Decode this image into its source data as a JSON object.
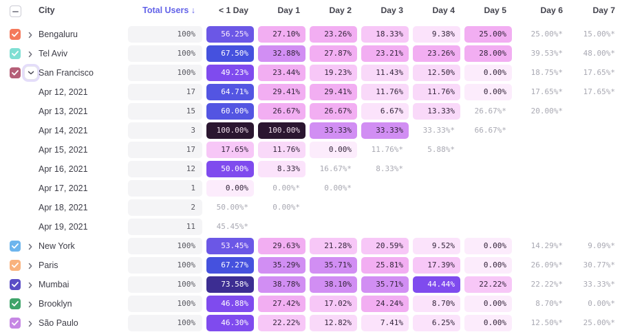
{
  "table": {
    "select_all_state": "indeterminate",
    "columns": [
      "City",
      "Total Users ↓",
      "< 1 Day",
      "Day 1",
      "Day 2",
      "Day 3",
      "Day 4",
      "Day 5",
      "Day 6",
      "Day 7"
    ],
    "rows": [
      {
        "kind": "city",
        "label": "Bengaluru",
        "checkbox_color": "#f4795b",
        "checked": true,
        "expanded": false,
        "total": "100%",
        "cells": [
          {
            "text": "56.25%",
            "value": 56.25
          },
          {
            "text": "27.10%",
            "value": 27.1
          },
          {
            "text": "23.26%",
            "value": 23.26
          },
          {
            "text": "18.33%",
            "value": 18.33
          },
          {
            "text": "9.38%",
            "value": 9.38
          },
          {
            "text": "25.00%",
            "value": 25.0
          },
          {
            "text": "25.00%*",
            "value": 25.0,
            "estimate": true
          },
          {
            "text": "15.00%*",
            "value": 15.0,
            "estimate": true
          }
        ]
      },
      {
        "kind": "city",
        "label": "Tel Aviv",
        "checkbox_color": "#7fdfd3",
        "checked": true,
        "expanded": false,
        "total": "100%",
        "cells": [
          {
            "text": "67.50%",
            "value": 67.5
          },
          {
            "text": "32.88%",
            "value": 32.88
          },
          {
            "text": "27.87%",
            "value": 27.87
          },
          {
            "text": "23.21%",
            "value": 23.21
          },
          {
            "text": "23.26%",
            "value": 23.26
          },
          {
            "text": "28.00%",
            "value": 28.0
          },
          {
            "text": "39.53%*",
            "value": 39.53,
            "estimate": true
          },
          {
            "text": "48.00%*",
            "value": 48.0,
            "estimate": true
          }
        ]
      },
      {
        "kind": "city",
        "label": "San Francisco",
        "checkbox_color": "#b55f78",
        "checked": true,
        "expanded": true,
        "focused": true,
        "total": "100%",
        "cells": [
          {
            "text": "49.23%",
            "value": 49.23
          },
          {
            "text": "23.44%",
            "value": 23.44
          },
          {
            "text": "19.23%",
            "value": 19.23
          },
          {
            "text": "11.43%",
            "value": 11.43
          },
          {
            "text": "12.50%",
            "value": 12.5
          },
          {
            "text": "0.00%",
            "value": 0
          },
          {
            "text": "18.75%*",
            "value": 18.75,
            "estimate": true
          },
          {
            "text": "17.65%*",
            "value": 17.65,
            "estimate": true
          }
        ]
      },
      {
        "kind": "date",
        "label": "Apr 12, 2021",
        "total": "17",
        "cells": [
          {
            "text": "64.71%",
            "value": 64.71
          },
          {
            "text": "29.41%",
            "value": 29.41
          },
          {
            "text": "29.41%",
            "value": 29.41
          },
          {
            "text": "11.76%",
            "value": 11.76
          },
          {
            "text": "11.76%",
            "value": 11.76
          },
          {
            "text": "0.00%",
            "value": 0
          },
          {
            "text": "17.65%*",
            "value": 17.65,
            "estimate": true
          },
          {
            "text": "17.65%*",
            "value": 17.65,
            "estimate": true
          }
        ]
      },
      {
        "kind": "date",
        "label": "Apr 13, 2021",
        "total": "15",
        "cells": [
          {
            "text": "60.00%",
            "value": 60.0
          },
          {
            "text": "26.67%",
            "value": 26.67
          },
          {
            "text": "26.67%",
            "value": 26.67
          },
          {
            "text": "6.67%",
            "value": 6.67
          },
          {
            "text": "13.33%",
            "value": 13.33
          },
          {
            "text": "26.67%*",
            "value": 26.67,
            "estimate": true
          },
          {
            "text": "20.00%*",
            "value": 20.0,
            "estimate": true
          },
          null
        ]
      },
      {
        "kind": "date",
        "label": "Apr 14, 2021",
        "total": "3",
        "cells": [
          {
            "text": "100.00%",
            "value": 100
          },
          {
            "text": "100.00%",
            "value": 100
          },
          {
            "text": "33.33%",
            "value": 33.33
          },
          {
            "text": "33.33%",
            "value": 33.33
          },
          {
            "text": "33.33%*",
            "value": 33.33,
            "estimate": true
          },
          {
            "text": "66.67%*",
            "value": 66.67,
            "estimate": true
          },
          null,
          null
        ]
      },
      {
        "kind": "date",
        "label": "Apr 15, 2021",
        "total": "17",
        "cells": [
          {
            "text": "17.65%",
            "value": 17.65
          },
          {
            "text": "11.76%",
            "value": 11.76
          },
          {
            "text": "0.00%",
            "value": 0
          },
          {
            "text": "11.76%*",
            "value": 11.76,
            "estimate": true
          },
          {
            "text": "5.88%*",
            "value": 5.88,
            "estimate": true
          },
          null,
          null,
          null
        ]
      },
      {
        "kind": "date",
        "label": "Apr 16, 2021",
        "total": "12",
        "cells": [
          {
            "text": "50.00%",
            "value": 50.0
          },
          {
            "text": "8.33%",
            "value": 8.33
          },
          {
            "text": "16.67%*",
            "value": 16.67,
            "estimate": true
          },
          {
            "text": "8.33%*",
            "value": 8.33,
            "estimate": true
          },
          null,
          null,
          null,
          null
        ]
      },
      {
        "kind": "date",
        "label": "Apr 17, 2021",
        "total": "1",
        "cells": [
          {
            "text": "0.00%",
            "value": 0
          },
          {
            "text": "0.00%*",
            "value": 0,
            "estimate": true
          },
          {
            "text": "0.00%*",
            "value": 0,
            "estimate": true
          },
          null,
          null,
          null,
          null,
          null
        ]
      },
      {
        "kind": "date",
        "label": "Apr 18, 2021",
        "total": "2",
        "cells": [
          {
            "text": "50.00%*",
            "value": 50.0,
            "estimate": true
          },
          {
            "text": "0.00%*",
            "value": 0,
            "estimate": true
          },
          null,
          null,
          null,
          null,
          null,
          null
        ]
      },
      {
        "kind": "date",
        "label": "Apr 19, 2021",
        "total": "11",
        "cells": [
          {
            "text": "45.45%*",
            "value": 45.45,
            "estimate": true
          },
          null,
          null,
          null,
          null,
          null,
          null,
          null
        ]
      },
      {
        "kind": "city",
        "label": "New York",
        "checkbox_color": "#6db5ed",
        "checked": true,
        "expanded": false,
        "total": "100%",
        "cells": [
          {
            "text": "53.45%",
            "value": 53.45
          },
          {
            "text": "29.63%",
            "value": 29.63
          },
          {
            "text": "21.28%",
            "value": 21.28
          },
          {
            "text": "20.59%",
            "value": 20.59
          },
          {
            "text": "9.52%",
            "value": 9.52
          },
          {
            "text": "0.00%",
            "value": 0
          },
          {
            "text": "14.29%*",
            "value": 14.29,
            "estimate": true
          },
          {
            "text": "9.09%*",
            "value": 9.09,
            "estimate": true
          }
        ]
      },
      {
        "kind": "city",
        "label": "Paris",
        "checkbox_color": "#f9b27d",
        "checked": true,
        "expanded": false,
        "total": "100%",
        "cells": [
          {
            "text": "67.27%",
            "value": 67.27
          },
          {
            "text": "35.29%",
            "value": 35.29
          },
          {
            "text": "35.71%",
            "value": 35.71
          },
          {
            "text": "25.81%",
            "value": 25.81
          },
          {
            "text": "17.39%",
            "value": 17.39
          },
          {
            "text": "0.00%",
            "value": 0
          },
          {
            "text": "26.09%*",
            "value": 26.09,
            "estimate": true
          },
          {
            "text": "30.77%*",
            "value": 30.77,
            "estimate": true
          }
        ]
      },
      {
        "kind": "city",
        "label": "Mumbai",
        "checkbox_color": "#5a4dc6",
        "checked": true,
        "expanded": false,
        "total": "100%",
        "cells": [
          {
            "text": "73.58%",
            "value": 73.58
          },
          {
            "text": "38.78%",
            "value": 38.78
          },
          {
            "text": "38.10%",
            "value": 38.1
          },
          {
            "text": "35.71%",
            "value": 35.71
          },
          {
            "text": "44.44%",
            "value": 44.44
          },
          {
            "text": "22.22%",
            "value": 22.22
          },
          {
            "text": "22.22%*",
            "value": 22.22,
            "estimate": true
          },
          {
            "text": "33.33%*",
            "value": 33.33,
            "estimate": true
          }
        ]
      },
      {
        "kind": "city",
        "label": "Brooklyn",
        "checkbox_color": "#3fa46a",
        "checked": true,
        "expanded": false,
        "total": "100%",
        "cells": [
          {
            "text": "46.88%",
            "value": 46.88
          },
          {
            "text": "27.42%",
            "value": 27.42
          },
          {
            "text": "17.02%",
            "value": 17.02
          },
          {
            "text": "24.24%",
            "value": 24.24
          },
          {
            "text": "8.70%",
            "value": 8.7
          },
          {
            "text": "0.00%",
            "value": 0
          },
          {
            "text": "8.70%*",
            "value": 8.7,
            "estimate": true
          },
          {
            "text": "0.00%*",
            "value": 0,
            "estimate": true
          }
        ]
      },
      {
        "kind": "city",
        "label": "São Paulo",
        "checkbox_color": "#c687e4",
        "checked": true,
        "expanded": false,
        "total": "100%",
        "cells": [
          {
            "text": "46.30%",
            "value": 46.3
          },
          {
            "text": "22.22%",
            "value": 22.22
          },
          {
            "text": "12.82%",
            "value": 12.82
          },
          {
            "text": "7.41%",
            "value": 7.41
          },
          {
            "text": "6.25%",
            "value": 6.25
          },
          {
            "text": "0.00%",
            "value": 0
          },
          {
            "text": "12.50%*",
            "value": 12.5,
            "estimate": true
          },
          {
            "text": "25.00%*",
            "value": 25.0,
            "estimate": true
          }
        ]
      }
    ]
  },
  "palette": {
    "accent_sorted_header": "#6262e8",
    "estimate_text": "#a8a8b2",
    "total_bar_bg": "#f4f4f6",
    "scale": [
      {
        "min": 95,
        "bg": "#2b1630",
        "fg": "#f2e2ee"
      },
      {
        "min": 70,
        "bg": "#3c2d92",
        "fg": "#ffffff"
      },
      {
        "min": 66,
        "bg": "#4551de",
        "fg": "#ffffff"
      },
      {
        "min": 58,
        "bg": "#5355e2",
        "fg": "#ffffff"
      },
      {
        "min": 51,
        "bg": "#6b57e6",
        "fg": "#fdeefd"
      },
      {
        "min": 42,
        "bg": "#7f4bee",
        "fg": "#ffffff"
      },
      {
        "min": 32,
        "bg": "#d18ef3",
        "fg": "#33243a"
      },
      {
        "min": 22.8,
        "bg": "#f2aef2",
        "fg": "#33243a"
      },
      {
        "min": 15,
        "bg": "#f7c7f7",
        "fg": "#33243a"
      },
      {
        "min": 10,
        "bg": "#f9d9f9",
        "fg": "#33243a"
      },
      {
        "min": 5,
        "bg": "#fbe3fb",
        "fg": "#33243a"
      },
      {
        "min": 0,
        "bg": "#fcecfc",
        "fg": "#33243a"
      }
    ]
  }
}
